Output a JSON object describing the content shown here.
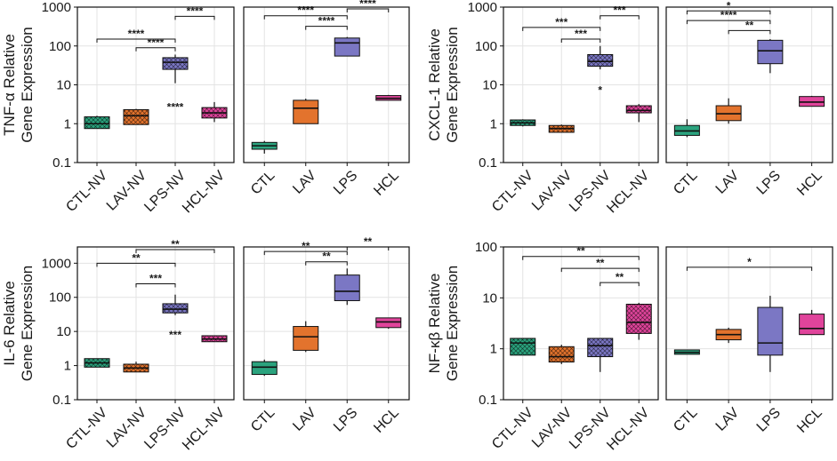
{
  "colors": {
    "green": "#2BA37E",
    "orange": "#E3732D",
    "purple": "#7B77C4",
    "pink": "#E0449B"
  },
  "chart_data": [
    {
      "type": "box",
      "id": "tnf",
      "ylabel_line1": "TNF-α Relative",
      "ylabel_line2": "Gene Expression",
      "yscale": "log",
      "ylim": [
        0.1,
        1000
      ],
      "yticks": [
        "0.1",
        "1",
        "10",
        "100",
        "1000"
      ],
      "panels": [
        {
          "categories": [
            "CTL-NV",
            "LAV-NV",
            "LPS-NV",
            "HCL-NV"
          ],
          "patterned": true,
          "boxes": [
            {
              "color": "green",
              "q1": 0.75,
              "median": 1.0,
              "q3": 1.5,
              "min": 0.75,
              "max": 1.6
            },
            {
              "color": "orange",
              "q1": 0.95,
              "median": 1.6,
              "q3": 2.3,
              "min": 0.95,
              "max": 2.4
            },
            {
              "color": "purple",
              "q1": 25,
              "median": 38,
              "q3": 50,
              "min": 11,
              "max": 60
            },
            {
              "color": "pink",
              "q1": 1.4,
              "median": 1.9,
              "q3": 2.6,
              "min": 1.1,
              "max": 3.6
            }
          ],
          "brackets": [
            {
              "from": 0,
              "to": 2,
              "y": 150,
              "stars": "****"
            },
            {
              "from": 1,
              "to": 2,
              "y": 90,
              "stars": "****"
            },
            {
              "from": 2,
              "to": 3,
              "y": 580,
              "stars": "****"
            }
          ],
          "marks": [
            {
              "index": 2,
              "y": 3.0,
              "stars": "****"
            }
          ]
        },
        {
          "categories": [
            "CTL",
            "LAV",
            "LPS",
            "HCL"
          ],
          "patterned": false,
          "boxes": [
            {
              "color": "green",
              "q1": 0.22,
              "median": 0.27,
              "q3": 0.33,
              "min": 0.17,
              "max": 0.36
            },
            {
              "color": "orange",
              "q1": 1.0,
              "median": 2.5,
              "q3": 4.0,
              "min": 1.0,
              "max": 4.4
            },
            {
              "color": "purple",
              "q1": 55,
              "median": 120,
              "q3": 160,
              "min": 55,
              "max": 170
            },
            {
              "color": "pink",
              "q1": 4.0,
              "median": 4.5,
              "q3": 5.3,
              "min": 4.0,
              "max": 5.5
            }
          ],
          "brackets": [
            {
              "from": 0,
              "to": 2,
              "y": 600,
              "stars": "****"
            },
            {
              "from": 1,
              "to": 2,
              "y": 320,
              "stars": "****"
            },
            {
              "from": 2,
              "to": 3,
              "y": 900,
              "stars": "****"
            }
          ],
          "marks": []
        }
      ]
    },
    {
      "type": "box",
      "id": "cxcl1",
      "ylabel_line1": "CXCL-1 Relative",
      "ylabel_line2": "Gene Expression",
      "yscale": "log",
      "ylim": [
        0.1,
        1000
      ],
      "yticks": [
        "0.1",
        "1",
        "10",
        "100",
        "1000"
      ],
      "panels": [
        {
          "categories": [
            "CTL-NV",
            "LAV-NV",
            "LPS-NV",
            "HCL-NV"
          ],
          "patterned": true,
          "boxes": [
            {
              "color": "green",
              "q1": 0.9,
              "median": 1.05,
              "q3": 1.25,
              "min": 0.85,
              "max": 1.3
            },
            {
              "color": "orange",
              "q1": 0.6,
              "median": 0.75,
              "q3": 0.9,
              "min": 0.6,
              "max": 0.95
            },
            {
              "color": "purple",
              "q1": 30,
              "median": 40,
              "q3": 60,
              "min": 25,
              "max": 100
            },
            {
              "color": "pink",
              "q1": 1.9,
              "median": 2.2,
              "q3": 2.9,
              "min": 1.1,
              "max": 3.2
            }
          ],
          "brackets": [
            {
              "from": 0,
              "to": 2,
              "y": 300,
              "stars": "***"
            },
            {
              "from": 1,
              "to": 2,
              "y": 150,
              "stars": "***"
            },
            {
              "from": 2,
              "to": 3,
              "y": 600,
              "stars": "***"
            }
          ],
          "marks": [
            {
              "index": 2,
              "y": 8,
              "stars": "*"
            }
          ]
        },
        {
          "categories": [
            "CTL",
            "LAV",
            "LPS",
            "HCL"
          ],
          "patterned": false,
          "boxes": [
            {
              "color": "green",
              "q1": 0.5,
              "median": 0.65,
              "q3": 0.9,
              "min": 0.45,
              "max": 1.3
            },
            {
              "color": "orange",
              "q1": 1.2,
              "median": 1.8,
              "q3": 2.9,
              "min": 1.0,
              "max": 4.5
            },
            {
              "color": "purple",
              "q1": 35,
              "median": 75,
              "q3": 140,
              "min": 20,
              "max": 150
            },
            {
              "color": "pink",
              "q1": 2.8,
              "median": 3.6,
              "q3": 5.0,
              "min": 2.8,
              "max": 5.2
            }
          ],
          "brackets": [
            {
              "from": 0,
              "to": 2,
              "y": 800,
              "stars": "*"
            },
            {
              "from": 0,
              "to": 2,
              "y": 450,
              "stars": "****"
            },
            {
              "from": 1,
              "to": 2,
              "y": 250,
              "stars": "**"
            }
          ],
          "marks": []
        }
      ]
    },
    {
      "type": "box",
      "id": "il6",
      "ylabel_line1": "IL-6 Relative",
      "ylabel_line2": "Gene Expression",
      "yscale": "log",
      "ylim": [
        0.1,
        3000
      ],
      "yticks": [
        "0.1",
        "1",
        "10",
        "100",
        "1000"
      ],
      "panels": [
        {
          "categories": [
            "CTL-NV",
            "LAV-NV",
            "LPS-NV",
            "HCL-NV"
          ],
          "patterned": true,
          "boxes": [
            {
              "color": "green",
              "q1": 0.9,
              "median": 1.2,
              "q3": 1.6,
              "min": 0.9,
              "max": 1.6
            },
            {
              "color": "orange",
              "q1": 0.65,
              "median": 0.85,
              "q3": 1.1,
              "min": 0.65,
              "max": 1.3
            },
            {
              "color": "purple",
              "q1": 35,
              "median": 45,
              "q3": 65,
              "min": 30,
              "max": 120
            },
            {
              "color": "pink",
              "q1": 5.0,
              "median": 6.0,
              "q3": 7.5,
              "min": 5.0,
              "max": 7.5
            }
          ],
          "brackets": [
            {
              "from": 0,
              "to": 2,
              "y": 1000,
              "stars": "**"
            },
            {
              "from": 1,
              "to": 2,
              "y": 250,
              "stars": "***"
            },
            {
              "from": 1,
              "to": 3,
              "y": 2500,
              "stars": "**"
            }
          ],
          "marks": [
            {
              "index": 2,
              "y": 9,
              "stars": "***"
            }
          ]
        },
        {
          "categories": [
            "CTL",
            "LAV",
            "LPS",
            "HCL"
          ],
          "patterned": false,
          "boxes": [
            {
              "color": "green",
              "q1": 0.55,
              "median": 0.9,
              "q3": 1.3,
              "min": 0.5,
              "max": 1.5
            },
            {
              "color": "orange",
              "q1": 2.8,
              "median": 7.0,
              "q3": 14,
              "min": 2.5,
              "max": 20
            },
            {
              "color": "purple",
              "q1": 80,
              "median": 150,
              "q3": 450,
              "min": 60,
              "max": 700
            },
            {
              "color": "pink",
              "q1": 13,
              "median": 19,
              "q3": 25,
              "min": 12,
              "max": 25
            }
          ],
          "brackets": [
            {
              "from": 0,
              "to": 2,
              "y": 2200,
              "stars": "**"
            },
            {
              "from": 1,
              "to": 2,
              "y": 1100,
              "stars": "**"
            },
            {
              "from": 2,
              "to": 3,
              "y": 3000,
              "stars": "**"
            }
          ],
          "marks": []
        }
      ]
    },
    {
      "type": "box",
      "id": "nfkb",
      "ylabel_line1": "NF-κβ Relative",
      "ylabel_line2": "Gene Expression",
      "yscale": "log",
      "ylim": [
        0.1,
        100
      ],
      "yticks": [
        "0.1",
        "1",
        "10",
        "100"
      ],
      "panels": [
        {
          "categories": [
            "CTL-NV",
            "LAV-NV",
            "LPS-NV",
            "HCL-NV"
          ],
          "patterned": true,
          "boxes": [
            {
              "color": "green",
              "q1": 0.75,
              "median": 1.3,
              "q3": 1.6,
              "min": 0.75,
              "max": 1.6
            },
            {
              "color": "orange",
              "q1": 0.55,
              "median": 0.7,
              "q3": 1.1,
              "min": 0.5,
              "max": 1.2
            },
            {
              "color": "purple",
              "q1": 0.7,
              "median": 1.15,
              "q3": 1.6,
              "min": 0.35,
              "max": 1.6
            },
            {
              "color": "pink",
              "q1": 2.0,
              "median": 3.3,
              "q3": 7.5,
              "min": 1.5,
              "max": 8.0
            }
          ],
          "brackets": [
            {
              "from": 0,
              "to": 3,
              "y": 65,
              "stars": "**"
            },
            {
              "from": 1,
              "to": 3,
              "y": 38,
              "stars": "**"
            },
            {
              "from": 2,
              "to": 3,
              "y": 20,
              "stars": "**"
            }
          ],
          "marks": []
        },
        {
          "categories": [
            "CTL",
            "LAV",
            "LPS",
            "HCL"
          ],
          "patterned": false,
          "boxes": [
            {
              "color": "green",
              "q1": 0.78,
              "median": 0.85,
              "q3": 0.95,
              "min": 0.78,
              "max": 0.95
            },
            {
              "color": "orange",
              "q1": 1.5,
              "median": 1.9,
              "q3": 2.4,
              "min": 1.3,
              "max": 2.6
            },
            {
              "color": "purple",
              "q1": 0.75,
              "median": 1.3,
              "q3": 6.5,
              "min": 0.35,
              "max": 11
            },
            {
              "color": "pink",
              "q1": 1.9,
              "median": 2.5,
              "q3": 4.8,
              "min": 1.9,
              "max": 5.8
            }
          ],
          "brackets": [
            {
              "from": 0,
              "to": 3,
              "y": 40,
              "stars": "*"
            }
          ],
          "marks": []
        }
      ]
    }
  ]
}
